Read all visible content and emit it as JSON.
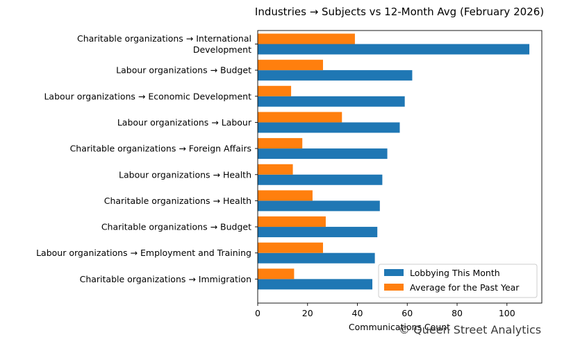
{
  "chart_data": {
    "type": "bar",
    "orientation": "horizontal",
    "title": "Industries → Subjects vs 12-Month Avg (February 2026)",
    "xlabel": "Communications Count",
    "ylabel": "",
    "xlim": [
      0,
      114
    ],
    "xticks": [
      0,
      20,
      40,
      60,
      80,
      100
    ],
    "grid": false,
    "legend_position": "lower-right",
    "categories": [
      [
        "Charitable organizations → International",
        "Development"
      ],
      [
        "Labour organizations → Budget"
      ],
      [
        "Labour organizations → Economic Development"
      ],
      [
        "Labour organizations → Labour"
      ],
      [
        "Charitable organizations → Foreign Affairs"
      ],
      [
        "Labour organizations → Health"
      ],
      [
        "Charitable organizations → Health"
      ],
      [
        "Charitable organizations → Budget"
      ],
      [
        "Labour organizations → Employment and Training"
      ],
      [
        "Charitable organizations → Immigration"
      ]
    ],
    "series": [
      {
        "name": "Lobbying This Month",
        "color": "#1f77b4",
        "values": [
          109,
          62,
          59,
          57,
          52,
          50,
          49,
          48,
          47,
          46
        ]
      },
      {
        "name": "Average for the Past Year",
        "color": "#ff7f0e",
        "values": [
          39,
          26.2,
          13.4,
          33.8,
          17.9,
          14.1,
          22,
          27.3,
          26.2,
          14.6
        ]
      }
    ]
  },
  "watermark": "© Queen Street Analytics"
}
